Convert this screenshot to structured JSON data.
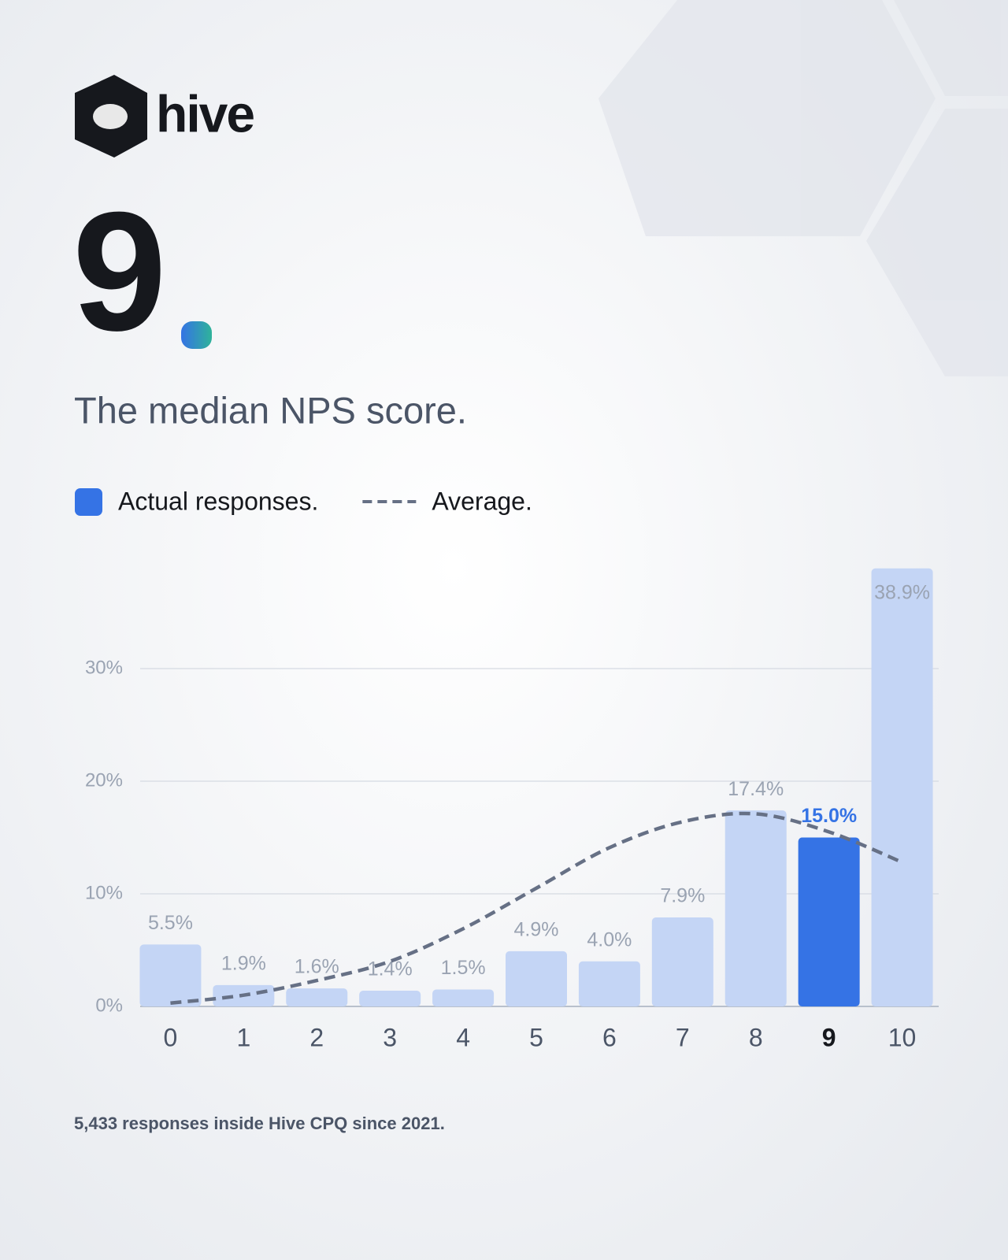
{
  "brand": "hive",
  "headline": "9",
  "subtitle": "The median NPS score.",
  "footnote": "5,433 responses inside Hive CPQ since 2021.",
  "chart_data": {
    "type": "bar",
    "categories": [
      "0",
      "1",
      "2",
      "3",
      "4",
      "5",
      "6",
      "7",
      "8",
      "9",
      "10"
    ],
    "series": [
      {
        "name": "Actual responses.",
        "type": "bar",
        "color": "#3573e5",
        "colors": [
          "#c4d5f5",
          "#c4d5f5",
          "#c4d5f5",
          "#c4d5f5",
          "#c4d5f5",
          "#c4d5f5",
          "#c4d5f5",
          "#c4d5f5",
          "#c4d5f5",
          "#3573e5",
          "#c4d5f5"
        ],
        "values": [
          5.5,
          1.9,
          1.6,
          1.4,
          1.5,
          4.9,
          4.0,
          7.9,
          17.4,
          15.0,
          38.9
        ],
        "value_labels": [
          "5.5%",
          "1.9%",
          "1.6%",
          "1.4%",
          "1.5%",
          "4.9%",
          "4.0%",
          "7.9%",
          "17.4%",
          "15.0%",
          "38.9%"
        ]
      },
      {
        "name": "Average.",
        "type": "line",
        "color": "#667085",
        "dashed": true,
        "values": [
          0.3,
          1.0,
          2.3,
          4.0,
          6.9,
          10.5,
          14.1,
          16.4,
          17.1,
          15.5,
          12.8
        ]
      }
    ],
    "ylim": [
      0,
      40
    ],
    "yticks": [
      {
        "value": 0,
        "label": "0%"
      },
      {
        "value": 10,
        "label": "10%"
      },
      {
        "value": 20,
        "label": "20%"
      },
      {
        "value": 30,
        "label": "30%"
      }
    ],
    "grid": true
  }
}
